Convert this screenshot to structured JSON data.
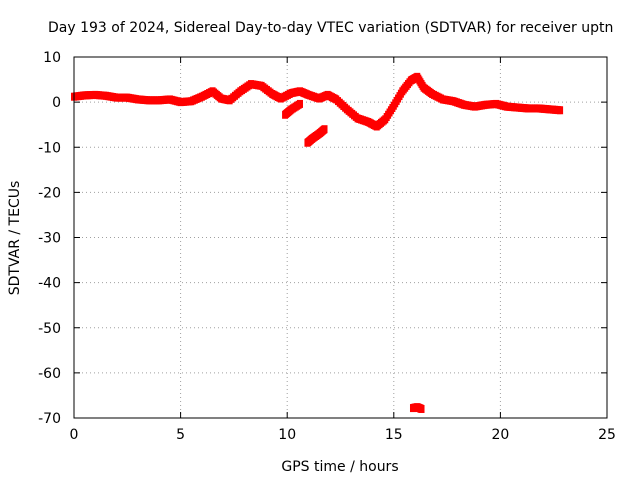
{
  "chart_data": {
    "type": "scatter",
    "title": "Day 193 of 2024, Sidereal Day-to-day VTEC variation (SDTVAR) for receiver uptn",
    "xlabel": "GPS time / hours",
    "ylabel": "SDTVAR / TECUs",
    "xlim": [
      0,
      25
    ],
    "ylim": [
      -70,
      10
    ],
    "xticks": [
      0,
      5,
      10,
      15,
      20,
      25
    ],
    "yticks": [
      -70,
      -60,
      -50,
      -40,
      -30,
      -20,
      -10,
      0,
      10
    ],
    "grid": true,
    "legend": "none",
    "series": [
      {
        "name": "SDTVAR",
        "color": "#ff0000",
        "points": [
          [
            0.0,
            1.2
          ],
          [
            0.5,
            1.5
          ],
          [
            1.0,
            1.6
          ],
          [
            1.5,
            1.4
          ],
          [
            2.0,
            1.0
          ],
          [
            2.5,
            1.0
          ],
          [
            3.0,
            0.6
          ],
          [
            3.5,
            0.4
          ],
          [
            4.0,
            0.4
          ],
          [
            4.5,
            0.6
          ],
          [
            5.0,
            0.0
          ],
          [
            5.5,
            0.2
          ],
          [
            6.0,
            1.2
          ],
          [
            6.5,
            2.4
          ],
          [
            6.9,
            0.8
          ],
          [
            7.3,
            0.4
          ],
          [
            7.8,
            2.4
          ],
          [
            8.3,
            4.0
          ],
          [
            8.8,
            3.6
          ],
          [
            9.3,
            1.8
          ],
          [
            9.7,
            0.8
          ],
          [
            10.2,
            2.0
          ],
          [
            10.6,
            2.4
          ],
          [
            11.0,
            1.6
          ],
          [
            11.5,
            0.8
          ],
          [
            11.9,
            1.6
          ],
          [
            12.3,
            0.6
          ],
          [
            12.8,
            -1.6
          ],
          [
            13.3,
            -3.6
          ],
          [
            13.8,
            -4.4
          ],
          [
            14.2,
            -5.4
          ],
          [
            14.6,
            -3.8
          ],
          [
            15.0,
            -0.8
          ],
          [
            15.4,
            2.4
          ],
          [
            15.8,
            4.8
          ],
          [
            16.1,
            5.6
          ],
          [
            16.4,
            3.2
          ],
          [
            16.8,
            1.8
          ],
          [
            17.3,
            0.6
          ],
          [
            17.8,
            0.2
          ],
          [
            18.3,
            -0.6
          ],
          [
            18.8,
            -1.0
          ],
          [
            19.3,
            -0.6
          ],
          [
            19.8,
            -0.4
          ],
          [
            20.3,
            -1.0
          ],
          [
            20.8,
            -1.2
          ],
          [
            21.3,
            -1.4
          ],
          [
            21.8,
            -1.4
          ],
          [
            22.3,
            -1.6
          ],
          [
            22.8,
            -1.8
          ],
          [
            9.9,
            -2.8
          ],
          [
            10.2,
            -1.6
          ],
          [
            10.6,
            -0.4
          ],
          [
            10.95,
            -9.0
          ],
          [
            11.2,
            -8.0
          ],
          [
            11.5,
            -7.0
          ],
          [
            11.75,
            -6.0
          ],
          [
            15.9,
            -67.8
          ],
          [
            16.1,
            -67.6
          ],
          [
            16.3,
            -68.0
          ]
        ]
      }
    ]
  }
}
